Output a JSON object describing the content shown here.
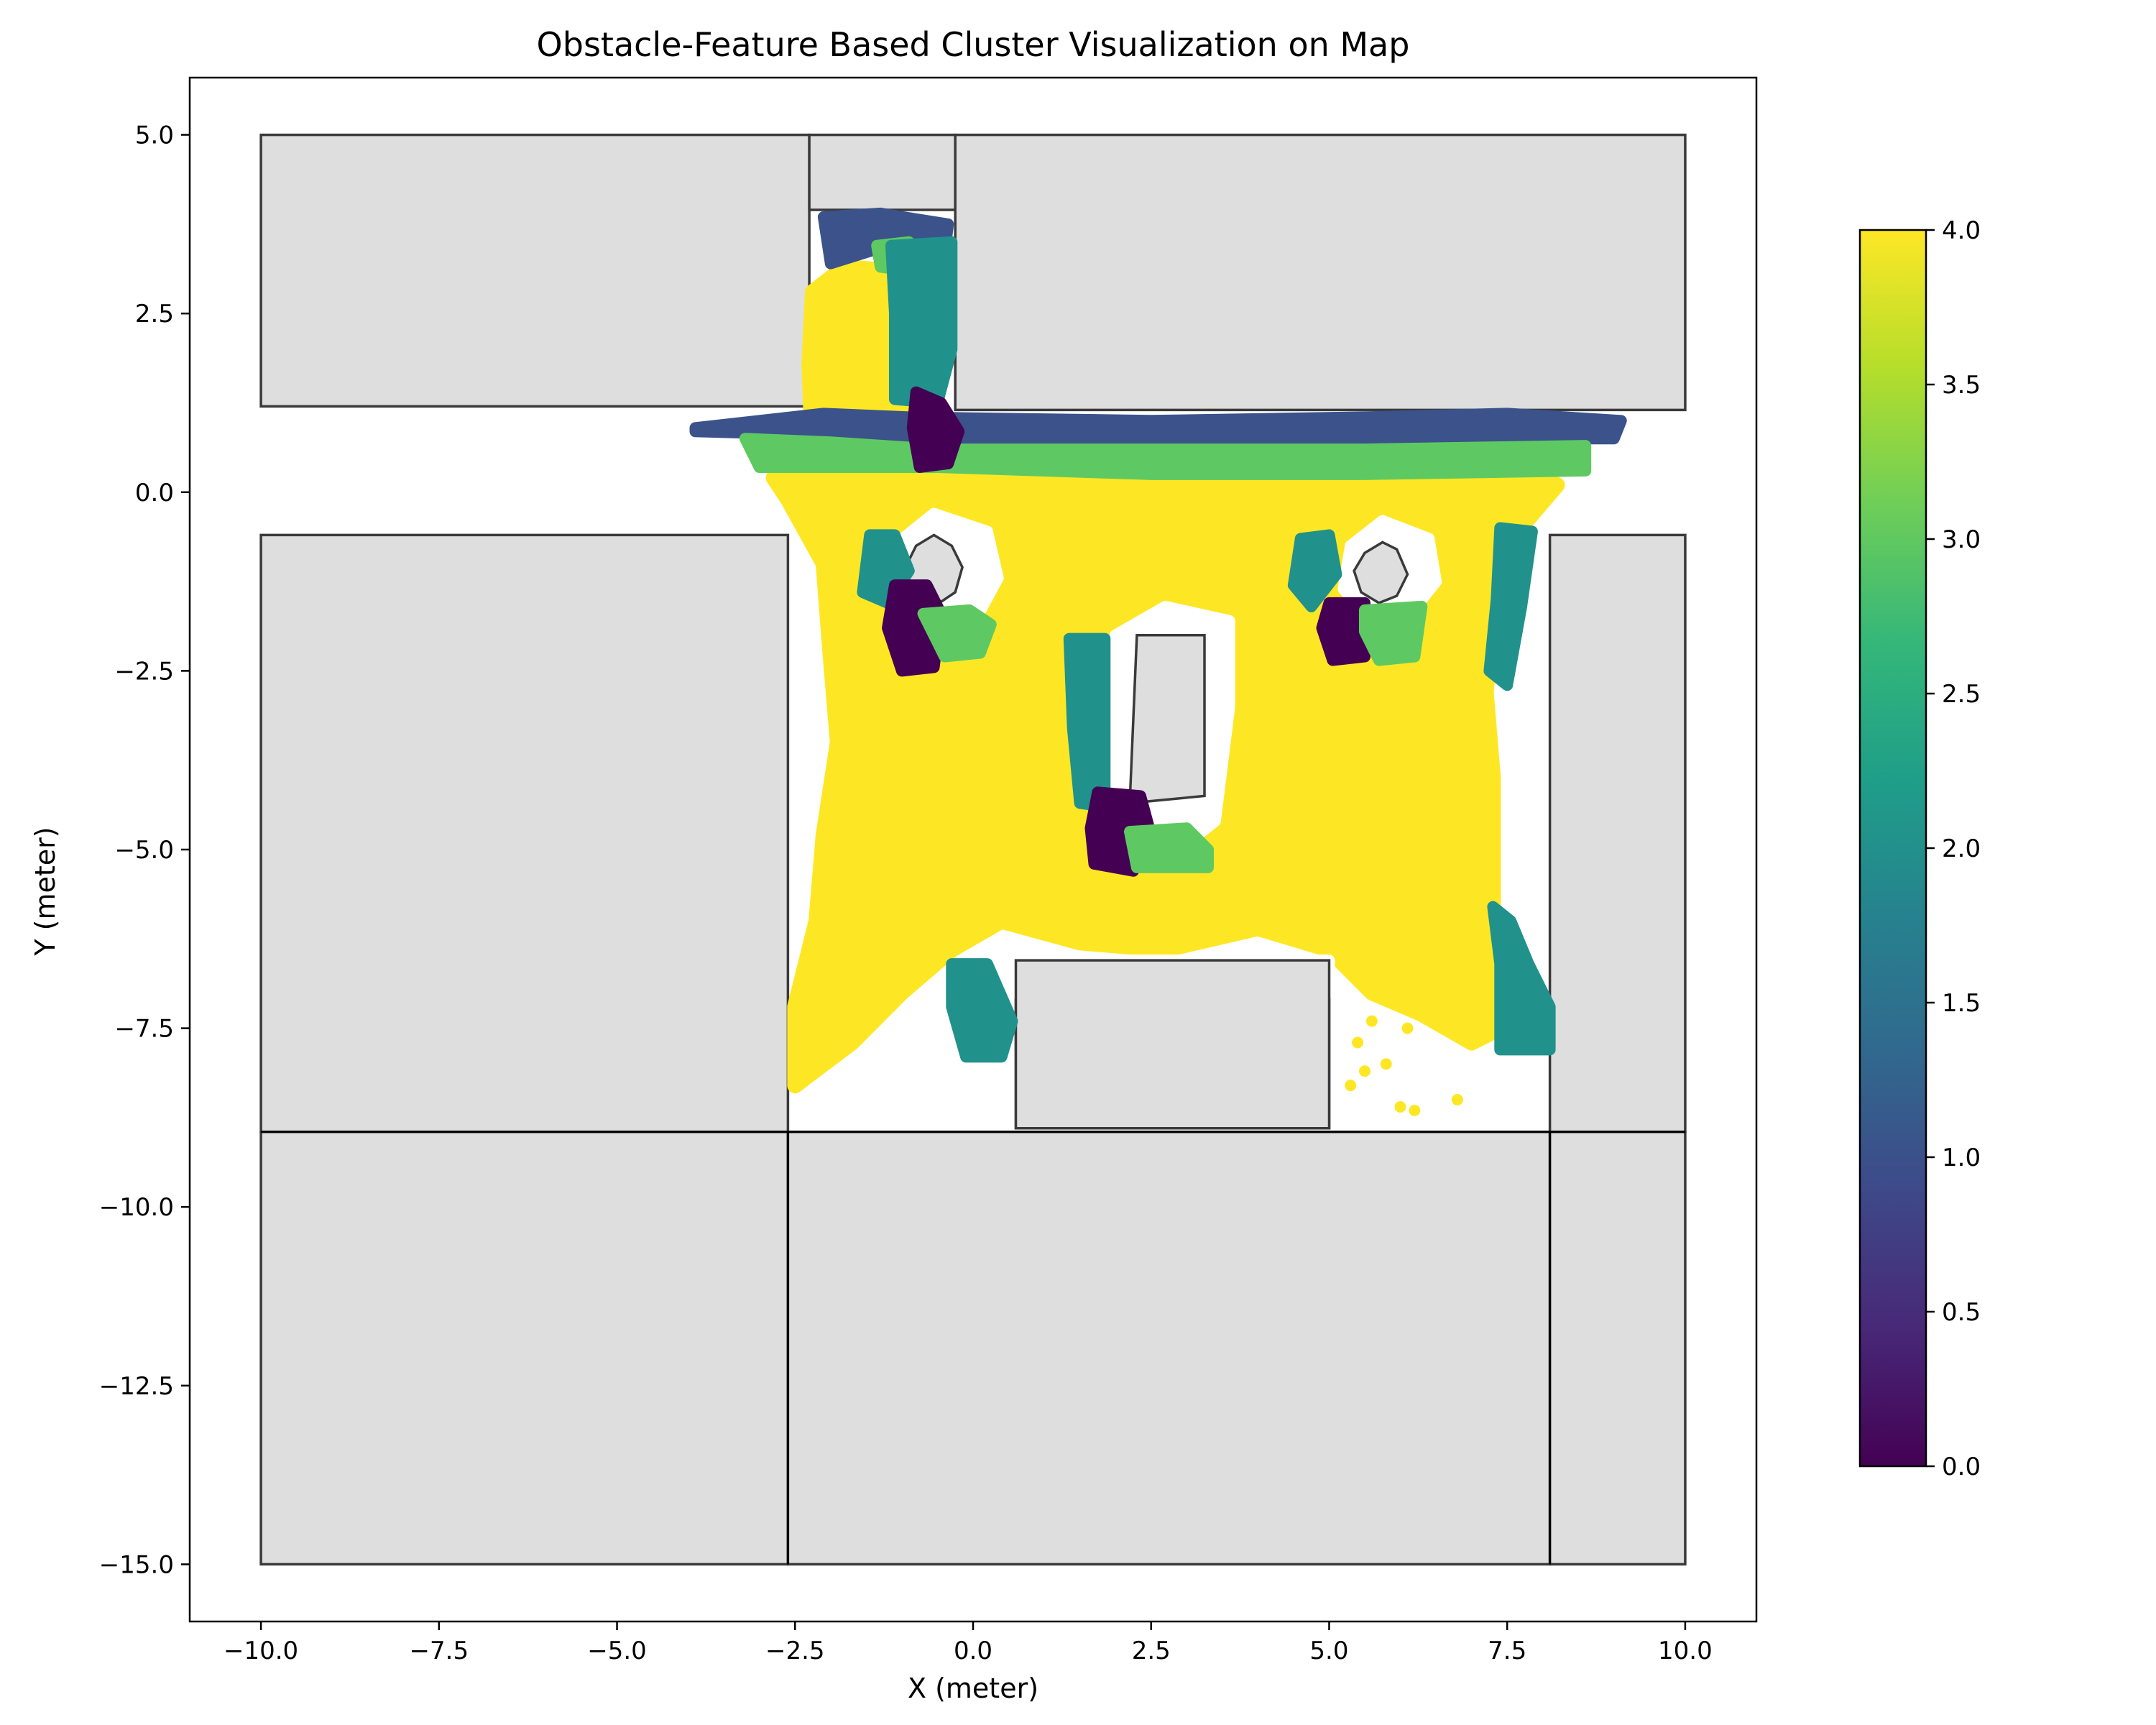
{
  "chart_data": {
    "type": "scatter",
    "title": "Obstacle-Feature Based Cluster Visualization on Map",
    "xlabel": "X (meter)",
    "ylabel": "Y (meter)",
    "xlim": [
      -11.0,
      11.0
    ],
    "ylim": [
      -15.8,
      5.8
    ],
    "x_ticks": [
      -10.0,
      -7.5,
      -5.0,
      -2.5,
      0.0,
      2.5,
      5.0,
      7.5,
      10.0
    ],
    "x_tick_labels": [
      "−10.0",
      "−7.5",
      "−5.0",
      "−2.5",
      "0.0",
      "2.5",
      "5.0",
      "7.5",
      "10.0"
    ],
    "y_ticks": [
      5.0,
      2.5,
      0.0,
      -2.5,
      -5.0,
      -7.5,
      -10.0,
      -12.5,
      -15.0
    ],
    "y_tick_labels": [
      "5.0",
      "2.5",
      "0.0",
      "−2.5",
      "−5.0",
      "−7.5",
      "−10.0",
      "−12.5",
      "−15.0"
    ],
    "grid": false,
    "colormap": "viridis",
    "colorbar": {
      "range": [
        0.0,
        4.0
      ],
      "ticks": [
        4.0,
        3.5,
        3.0,
        2.5,
        2.0,
        1.5,
        1.0,
        0.5,
        0.0
      ],
      "tick_labels": [
        "4.0",
        "3.5",
        "3.0",
        "2.5",
        "2.0",
        "1.5",
        "1.0",
        "0.5",
        "0.0"
      ]
    },
    "cluster_colors": {
      "0": "#440154",
      "1": "#3b528b",
      "2": "#21918c",
      "3": "#5ec962",
      "4": "#fde725"
    },
    "obstacle_fill": "#dedede",
    "obstacle_edge": "#3a3a3a",
    "obstacles": [
      {
        "points": [
          [
            -10,
            1.2
          ],
          [
            -2.3,
            1.2
          ],
          [
            -2.3,
            5
          ],
          [
            -10,
            5
          ]
        ]
      },
      {
        "points": [
          [
            -2.3,
            3.95
          ],
          [
            -0.25,
            3.95
          ],
          [
            -0.25,
            5
          ],
          [
            -2.3,
            5
          ]
        ]
      },
      {
        "points": [
          [
            -0.25,
            1.15
          ],
          [
            10,
            1.15
          ],
          [
            10,
            5
          ],
          [
            -0.25,
            5
          ]
        ]
      },
      {
        "points": [
          [
            -10,
            -8.95
          ],
          [
            -2.6,
            -8.95
          ],
          [
            -2.6,
            -0.6
          ],
          [
            -10,
            -0.6
          ]
        ]
      },
      {
        "points": [
          [
            8.1,
            -8.95
          ],
          [
            10,
            -8.95
          ],
          [
            10,
            -0.6
          ],
          [
            8.1,
            -0.6
          ]
        ]
      },
      {
        "points": [
          [
            -10,
            -15
          ],
          [
            -2.6,
            -15
          ],
          [
            -2.6,
            -8.95
          ],
          [
            -10,
            -8.95
          ]
        ]
      },
      {
        "points": [
          [
            -2.6,
            -15
          ],
          [
            8.1,
            -15
          ],
          [
            8.1,
            -8.95
          ],
          [
            -2.6,
            -8.95
          ]
        ]
      },
      {
        "points": [
          [
            8.1,
            -15
          ],
          [
            10,
            -15
          ],
          [
            10,
            -8.95
          ],
          [
            8.1,
            -8.95
          ]
        ]
      },
      {
        "points": [
          [
            0.6,
            -8.9
          ],
          [
            5.0,
            -8.9
          ],
          [
            5.0,
            -6.55
          ],
          [
            0.6,
            -6.55
          ]
        ]
      },
      {
        "points": [
          [
            2.3,
            -2.0
          ],
          [
            3.25,
            -2.0
          ],
          [
            3.25,
            -4.25
          ],
          [
            2.2,
            -4.35
          ]
        ]
      },
      {
        "points": [
          [
            -0.55,
            -0.6
          ],
          [
            -0.3,
            -0.75
          ],
          [
            -0.15,
            -1.05
          ],
          [
            -0.25,
            -1.4
          ],
          [
            -0.55,
            -1.6
          ],
          [
            -0.85,
            -1.4
          ],
          [
            -0.95,
            -1.05
          ],
          [
            -0.8,
            -0.75
          ]
        ]
      },
      {
        "points": [
          [
            5.75,
            -0.7
          ],
          [
            5.95,
            -0.8
          ],
          [
            6.1,
            -1.15
          ],
          [
            5.95,
            -1.45
          ],
          [
            5.7,
            -1.55
          ],
          [
            5.45,
            -1.4
          ],
          [
            5.35,
            -1.1
          ],
          [
            5.5,
            -0.85
          ]
        ]
      }
    ],
    "clusters": [
      {
        "cluster": 4,
        "points": [
          [
            -2.2,
            -6.0
          ],
          [
            -2.1,
            -4.8
          ],
          [
            -1.9,
            -3.5
          ],
          [
            -2.0,
            -2.3
          ],
          [
            -2.1,
            -1.0
          ],
          [
            -2.6,
            -0.1
          ],
          [
            -2.8,
            0.2
          ],
          [
            -1.0,
            0.3
          ],
          [
            0.5,
            0.25
          ],
          [
            3.0,
            0.25
          ],
          [
            5.5,
            0.25
          ],
          [
            7.8,
            0.3
          ],
          [
            8.2,
            0.1
          ],
          [
            7.6,
            -0.6
          ],
          [
            7.3,
            -1.6
          ],
          [
            7.2,
            -2.8
          ],
          [
            7.3,
            -4.0
          ],
          [
            7.3,
            -5.2
          ],
          [
            7.3,
            -6.4
          ],
          [
            7.6,
            -7.4
          ],
          [
            7.0,
            -7.7
          ],
          [
            6.3,
            -7.3
          ],
          [
            5.6,
            -7.0
          ],
          [
            5.0,
            -6.4
          ],
          [
            4.0,
            -6.1
          ],
          [
            2.7,
            -6.4
          ],
          [
            1.5,
            -6.3
          ],
          [
            0.4,
            -6.0
          ],
          [
            -0.3,
            -6.4
          ],
          [
            -1.0,
            -7.0
          ],
          [
            -1.7,
            -7.7
          ],
          [
            -2.5,
            -8.3
          ],
          [
            -2.5,
            -7.2
          ]
        ]
      },
      {
        "cluster": 4,
        "points": [
          [
            -2.25,
            0.5
          ],
          [
            -2.3,
            1.8
          ],
          [
            -2.25,
            2.8
          ],
          [
            -1.8,
            3.15
          ],
          [
            -1.25,
            3.1
          ],
          [
            -1.1,
            2.2
          ],
          [
            -0.95,
            1.2
          ],
          [
            -0.85,
            0.4
          ],
          [
            -1.6,
            0.3
          ]
        ]
      }
    ],
    "cluster_holes": [
      {
        "points": [
          [
            2.0,
            -2.0
          ],
          [
            2.7,
            -1.6
          ],
          [
            3.6,
            -1.8
          ],
          [
            3.6,
            -3.0
          ],
          [
            3.4,
            -4.6
          ],
          [
            2.9,
            -5.0
          ],
          [
            2.0,
            -4.8
          ],
          [
            1.9,
            -3.3
          ]
        ]
      },
      {
        "points": [
          [
            -0.55,
            -0.3
          ],
          [
            0.2,
            -0.55
          ],
          [
            0.35,
            -1.2
          ],
          [
            0.05,
            -1.75
          ],
          [
            -0.55,
            -1.95
          ],
          [
            -1.05,
            -1.5
          ],
          [
            -1.05,
            -0.7
          ]
        ]
      },
      {
        "points": [
          [
            5.75,
            -0.4
          ],
          [
            6.4,
            -0.65
          ],
          [
            6.5,
            -1.25
          ],
          [
            6.1,
            -1.75
          ],
          [
            5.6,
            -1.85
          ],
          [
            5.2,
            -1.35
          ],
          [
            5.3,
            -0.75
          ]
        ]
      },
      {
        "points": [
          [
            0.6,
            -6.55
          ],
          [
            5.0,
            -6.55
          ],
          [
            5.0,
            -7.0
          ],
          [
            0.6,
            -7.0
          ]
        ]
      }
    ],
    "cluster_patches": [
      {
        "cluster": 1,
        "points": [
          [
            -3.9,
            0.9
          ],
          [
            -2.1,
            1.1
          ],
          [
            -0.9,
            1.05
          ],
          [
            2.5,
            1.0
          ],
          [
            5.5,
            1.05
          ],
          [
            7.5,
            1.1
          ],
          [
            9.1,
            1.0
          ],
          [
            9.0,
            0.75
          ],
          [
            6.0,
            0.75
          ],
          [
            3.0,
            0.7
          ],
          [
            0.0,
            0.75
          ],
          [
            -2.0,
            0.8
          ],
          [
            -3.9,
            0.85
          ]
        ]
      },
      {
        "cluster": 3,
        "points": [
          [
            -3.2,
            0.75
          ],
          [
            -2.0,
            0.7
          ],
          [
            -0.5,
            0.6
          ],
          [
            2.5,
            0.6
          ],
          [
            5.5,
            0.6
          ],
          [
            8.6,
            0.65
          ],
          [
            8.6,
            0.3
          ],
          [
            5.5,
            0.25
          ],
          [
            2.5,
            0.25
          ],
          [
            -0.5,
            0.35
          ],
          [
            -2.0,
            0.35
          ],
          [
            -3.0,
            0.35
          ]
        ]
      },
      {
        "cluster": 1,
        "points": [
          [
            -2.1,
            3.85
          ],
          [
            -1.3,
            3.9
          ],
          [
            -0.35,
            3.75
          ],
          [
            -0.4,
            3.35
          ],
          [
            -1.2,
            3.45
          ],
          [
            -2.0,
            3.2
          ]
        ]
      },
      {
        "cluster": 3,
        "points": [
          [
            -1.35,
            3.45
          ],
          [
            -0.9,
            3.5
          ],
          [
            -0.9,
            3.1
          ],
          [
            -1.3,
            3.15
          ]
        ]
      },
      {
        "cluster": 2,
        "points": [
          [
            -1.15,
            3.45
          ],
          [
            -0.3,
            3.5
          ],
          [
            -0.3,
            2.0
          ],
          [
            -0.5,
            1.25
          ],
          [
            -1.1,
            1.3
          ],
          [
            -1.1,
            2.5
          ]
        ]
      },
      {
        "cluster": 0,
        "points": [
          [
            -0.8,
            1.4
          ],
          [
            -0.45,
            1.25
          ],
          [
            -0.2,
            0.85
          ],
          [
            -0.35,
            0.4
          ],
          [
            -0.75,
            0.35
          ],
          [
            -0.85,
            0.9
          ]
        ]
      },
      {
        "cluster": 2,
        "points": [
          [
            -1.45,
            -0.6
          ],
          [
            -1.1,
            -0.6
          ],
          [
            -0.9,
            -1.1
          ],
          [
            -1.2,
            -1.55
          ],
          [
            -1.55,
            -1.4
          ]
        ]
      },
      {
        "cluster": 0,
        "points": [
          [
            -1.1,
            -1.3
          ],
          [
            -0.65,
            -1.3
          ],
          [
            -0.45,
            -1.7
          ],
          [
            -0.55,
            -2.45
          ],
          [
            -1.0,
            -2.5
          ],
          [
            -1.2,
            -1.9
          ]
        ]
      },
      {
        "cluster": 3,
        "points": [
          [
            -0.7,
            -1.7
          ],
          [
            -0.05,
            -1.65
          ],
          [
            0.25,
            -1.85
          ],
          [
            0.1,
            -2.25
          ],
          [
            -0.4,
            -2.3
          ]
        ]
      },
      {
        "cluster": 2,
        "points": [
          [
            4.6,
            -0.65
          ],
          [
            5.0,
            -0.6
          ],
          [
            5.1,
            -1.15
          ],
          [
            4.75,
            -1.6
          ],
          [
            4.5,
            -1.3
          ]
        ]
      },
      {
        "cluster": 0,
        "points": [
          [
            5.0,
            -1.55
          ],
          [
            5.5,
            -1.55
          ],
          [
            5.5,
            -2.3
          ],
          [
            5.05,
            -2.35
          ],
          [
            4.9,
            -1.9
          ]
        ]
      },
      {
        "cluster": 3,
        "points": [
          [
            5.5,
            -1.65
          ],
          [
            6.3,
            -1.6
          ],
          [
            6.2,
            -2.3
          ],
          [
            5.7,
            -2.35
          ],
          [
            5.5,
            -1.95
          ]
        ]
      },
      {
        "cluster": 2,
        "points": [
          [
            7.4,
            -0.5
          ],
          [
            7.85,
            -0.55
          ],
          [
            7.7,
            -1.6
          ],
          [
            7.5,
            -2.7
          ],
          [
            7.25,
            -2.5
          ],
          [
            7.35,
            -1.5
          ]
        ]
      },
      {
        "cluster": 2,
        "points": [
          [
            1.35,
            -2.05
          ],
          [
            1.85,
            -2.05
          ],
          [
            1.85,
            -3.5
          ],
          [
            1.85,
            -4.4
          ],
          [
            1.5,
            -4.35
          ],
          [
            1.4,
            -3.3
          ]
        ]
      },
      {
        "cluster": 0,
        "points": [
          [
            1.75,
            -4.2
          ],
          [
            2.35,
            -4.25
          ],
          [
            2.5,
            -4.8
          ],
          [
            2.25,
            -5.3
          ],
          [
            1.7,
            -5.2
          ],
          [
            1.65,
            -4.7
          ]
        ]
      },
      {
        "cluster": 3,
        "points": [
          [
            2.2,
            -4.75
          ],
          [
            3.0,
            -4.7
          ],
          [
            3.3,
            -5.0
          ],
          [
            3.3,
            -5.25
          ],
          [
            2.3,
            -5.25
          ]
        ]
      },
      {
        "cluster": 2,
        "points": [
          [
            7.3,
            -5.8
          ],
          [
            7.55,
            -6.0
          ],
          [
            7.8,
            -6.6
          ],
          [
            8.1,
            -7.2
          ],
          [
            8.1,
            -7.8
          ],
          [
            7.4,
            -7.8
          ],
          [
            7.4,
            -6.6
          ]
        ]
      },
      {
        "cluster": 2,
        "points": [
          [
            -0.3,
            -6.6
          ],
          [
            0.2,
            -6.6
          ],
          [
            0.55,
            -7.4
          ],
          [
            0.4,
            -7.9
          ],
          [
            -0.1,
            -7.9
          ],
          [
            -0.3,
            -7.2
          ]
        ]
      }
    ],
    "cluster_dots": [
      {
        "cluster": 4,
        "x": 5.4,
        "y": -7.7
      },
      {
        "cluster": 4,
        "x": 5.6,
        "y": -7.4
      },
      {
        "cluster": 4,
        "x": 5.8,
        "y": -8.0
      },
      {
        "cluster": 4,
        "x": 5.3,
        "y": -8.3
      },
      {
        "cluster": 4,
        "x": 6.0,
        "y": -8.6
      },
      {
        "cluster": 4,
        "x": 6.2,
        "y": -8.65
      },
      {
        "cluster": 4,
        "x": 6.1,
        "y": -7.5
      },
      {
        "cluster": 4,
        "x": 6.3,
        "y": -7.3
      },
      {
        "cluster": 4,
        "x": 6.8,
        "y": -8.5
      },
      {
        "cluster": 4,
        "x": 5.5,
        "y": -8.1
      }
    ]
  }
}
